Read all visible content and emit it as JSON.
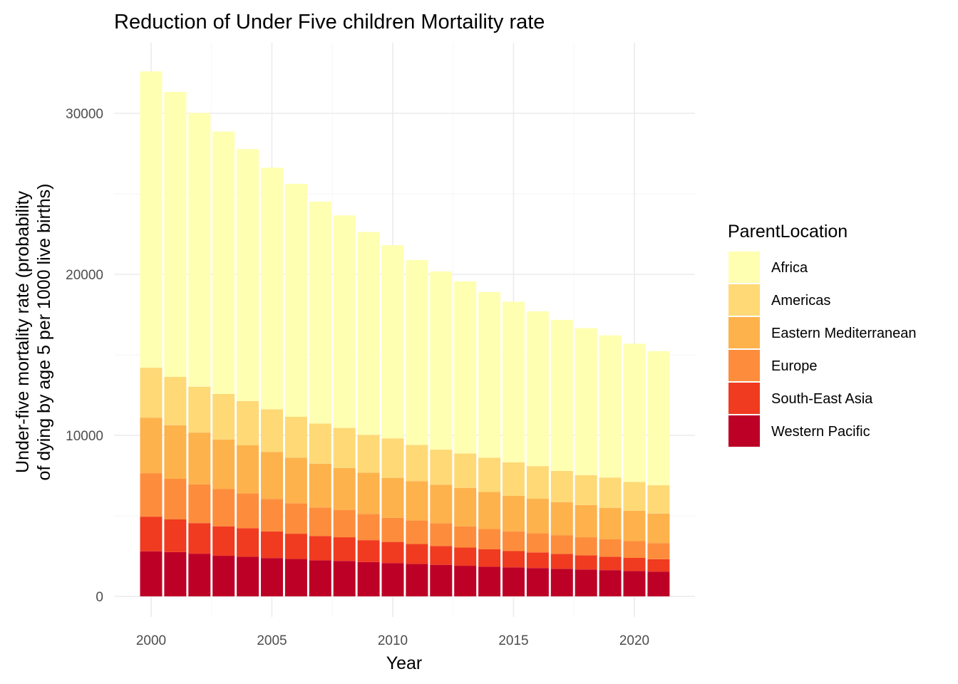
{
  "chart_data": {
    "type": "bar",
    "stacked": true,
    "title": "Reduction of Under Five children Mortaility rate",
    "xlabel": "Year",
    "ylabel": "Under-five mortality rate (probability\nof dying by age 5 per 1000 live births)",
    "ylim": [
      0,
      32600
    ],
    "xlim": [
      1999.1,
      2022.6
    ],
    "x_ticks": [
      2000,
      2005,
      2010,
      2015,
      2020
    ],
    "y_ticks": [
      0,
      10000,
      20000,
      30000
    ],
    "grid": true,
    "legend": {
      "title": "ParentLocation",
      "position": "right"
    },
    "x": [
      2000,
      2001,
      2002,
      2003,
      2004,
      2005,
      2006,
      2007,
      2008,
      2009,
      2010,
      2011,
      2012,
      2013,
      2014,
      2015,
      2016,
      2017,
      2018,
      2019,
      2020,
      2021
    ],
    "series": [
      {
        "name": "Western Pacific",
        "color": "#bd0026",
        "values": [
          2800,
          2750,
          2650,
          2520,
          2460,
          2380,
          2320,
          2240,
          2200,
          2130,
          2070,
          2010,
          1960,
          1900,
          1840,
          1800,
          1760,
          1710,
          1670,
          1630,
          1580,
          1540
        ]
      },
      {
        "name": "South-East Asia",
        "color": "#f03b20",
        "values": [
          2150,
          2030,
          1900,
          1830,
          1770,
          1650,
          1570,
          1510,
          1470,
          1360,
          1310,
          1240,
          1170,
          1130,
          1080,
          1010,
          970,
          930,
          880,
          830,
          810,
          770
        ]
      },
      {
        "name": "Europe",
        "color": "#fd8d3c",
        "values": [
          2700,
          2520,
          2400,
          2310,
          2160,
          2020,
          1890,
          1770,
          1700,
          1630,
          1500,
          1460,
          1410,
          1320,
          1260,
          1220,
          1190,
          1160,
          1120,
          1080,
          1040,
          1000
        ]
      },
      {
        "name": "Eastern Mediterranean",
        "color": "#feb24c",
        "values": [
          3450,
          3330,
          3220,
          3080,
          2990,
          2920,
          2830,
          2720,
          2600,
          2560,
          2480,
          2450,
          2390,
          2380,
          2300,
          2210,
          2140,
          2050,
          2000,
          1960,
          1890,
          1830
        ]
      },
      {
        "name": "Americas",
        "color": "#fed976",
        "values": [
          3100,
          3000,
          2850,
          2830,
          2750,
          2650,
          2540,
          2490,
          2490,
          2350,
          2450,
          2250,
          2180,
          2140,
          2130,
          2080,
          2030,
          1940,
          1860,
          1880,
          1790,
          1760
        ]
      },
      {
        "name": "Africa",
        "color": "#ffffb2",
        "values": [
          18400,
          17700,
          17000,
          16300,
          15650,
          15000,
          14470,
          13780,
          13200,
          12600,
          12000,
          11480,
          11070,
          10690,
          10290,
          9980,
          9610,
          9380,
          9130,
          8830,
          8580,
          8330
        ]
      }
    ]
  }
}
